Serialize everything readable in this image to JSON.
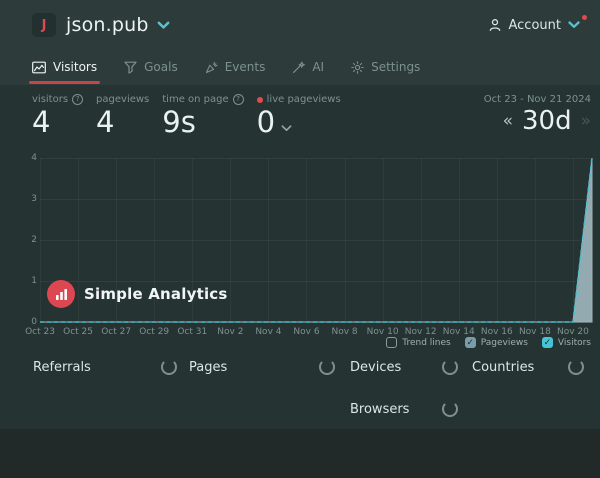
{
  "colors": {
    "accent_red": "#d9464e",
    "accent_teal": "#57c2cf",
    "pageviews_fill": "#9db4bc",
    "visitors_line": "#3fbfd2",
    "pageviews_checkbox": "#7b9dab",
    "visitors_checkbox": "#45c4d7"
  },
  "header": {
    "site_initial": "J",
    "site_name": "json.pub",
    "account_label": "Account"
  },
  "nav": {
    "tabs": [
      {
        "label": "Visitors",
        "icon": "chart",
        "active": true
      },
      {
        "label": "Goals",
        "icon": "funnel",
        "active": false
      },
      {
        "label": "Events",
        "icon": "confetti",
        "active": false
      },
      {
        "label": "AI",
        "icon": "wand",
        "active": false
      },
      {
        "label": "Settings",
        "icon": "gear",
        "active": false
      }
    ]
  },
  "stats": {
    "items": [
      {
        "label": "visitors",
        "info": true,
        "dot": false,
        "dropdown": false,
        "value": "4"
      },
      {
        "label": "pageviews",
        "info": false,
        "dot": false,
        "dropdown": false,
        "value": "4"
      },
      {
        "label": "time on page",
        "info": true,
        "dot": false,
        "dropdown": false,
        "value": "9s"
      },
      {
        "label": "live pageviews",
        "info": false,
        "dot": true,
        "dropdown": true,
        "value": "0"
      }
    ]
  },
  "period": {
    "range": "Oct 23 - Nov 21 2024",
    "selected": "30d",
    "prev_icon": "«",
    "next_icon": "»"
  },
  "watermark": {
    "label": "Simple Analytics"
  },
  "chart_data": {
    "type": "area",
    "x": [
      "Oct 23",
      "Oct 24",
      "Oct 25",
      "Oct 26",
      "Oct 27",
      "Oct 28",
      "Oct 29",
      "Oct 30",
      "Oct 31",
      "Nov 1",
      "Nov 2",
      "Nov 3",
      "Nov 4",
      "Nov 5",
      "Nov 6",
      "Nov 7",
      "Nov 8",
      "Nov 9",
      "Nov 10",
      "Nov 11",
      "Nov 12",
      "Nov 13",
      "Nov 14",
      "Nov 15",
      "Nov 16",
      "Nov 17",
      "Nov 18",
      "Nov 19",
      "Nov 20",
      "Nov 21"
    ],
    "series": [
      {
        "name": "Pageviews",
        "style": "area",
        "color": "#9db4bc",
        "values": [
          0,
          0,
          0,
          0,
          0,
          0,
          0,
          0,
          0,
          0,
          0,
          0,
          0,
          0,
          0,
          0,
          0,
          0,
          0,
          0,
          0,
          0,
          0,
          0,
          0,
          0,
          0,
          0,
          0,
          4
        ]
      },
      {
        "name": "Visitors",
        "style": "dashed-line",
        "color": "#3fbfd2",
        "values": [
          0,
          0,
          0,
          0,
          0,
          0,
          0,
          0,
          0,
          0,
          0,
          0,
          0,
          0,
          0,
          0,
          0,
          0,
          0,
          0,
          0,
          0,
          0,
          0,
          0,
          0,
          0,
          0,
          0,
          4
        ]
      }
    ],
    "ylim": [
      0,
      4
    ],
    "yticks": [
      0,
      1,
      2,
      3,
      4
    ],
    "xticks": [
      "Oct 23",
      "Oct 25",
      "Oct 27",
      "Oct 29",
      "Oct 31",
      "Nov 2",
      "Nov 4",
      "Nov 6",
      "Nov 8",
      "Nov 10",
      "Nov 12",
      "Nov 14",
      "Nov 16",
      "Nov 18",
      "Nov 20"
    ],
    "grid": true,
    "legend_position": "bottom-right",
    "legend": [
      {
        "label": "Trend lines",
        "checked": false,
        "color": ""
      },
      {
        "label": "Pageviews",
        "checked": true,
        "color": "#7b9dab"
      },
      {
        "label": "Visitors",
        "checked": true,
        "color": "#45c4d7"
      }
    ]
  },
  "panels": {
    "row1": [
      "Referrals",
      "Pages",
      "Devices",
      "Countries"
    ],
    "row2": [
      "Browsers"
    ],
    "loading": true
  }
}
